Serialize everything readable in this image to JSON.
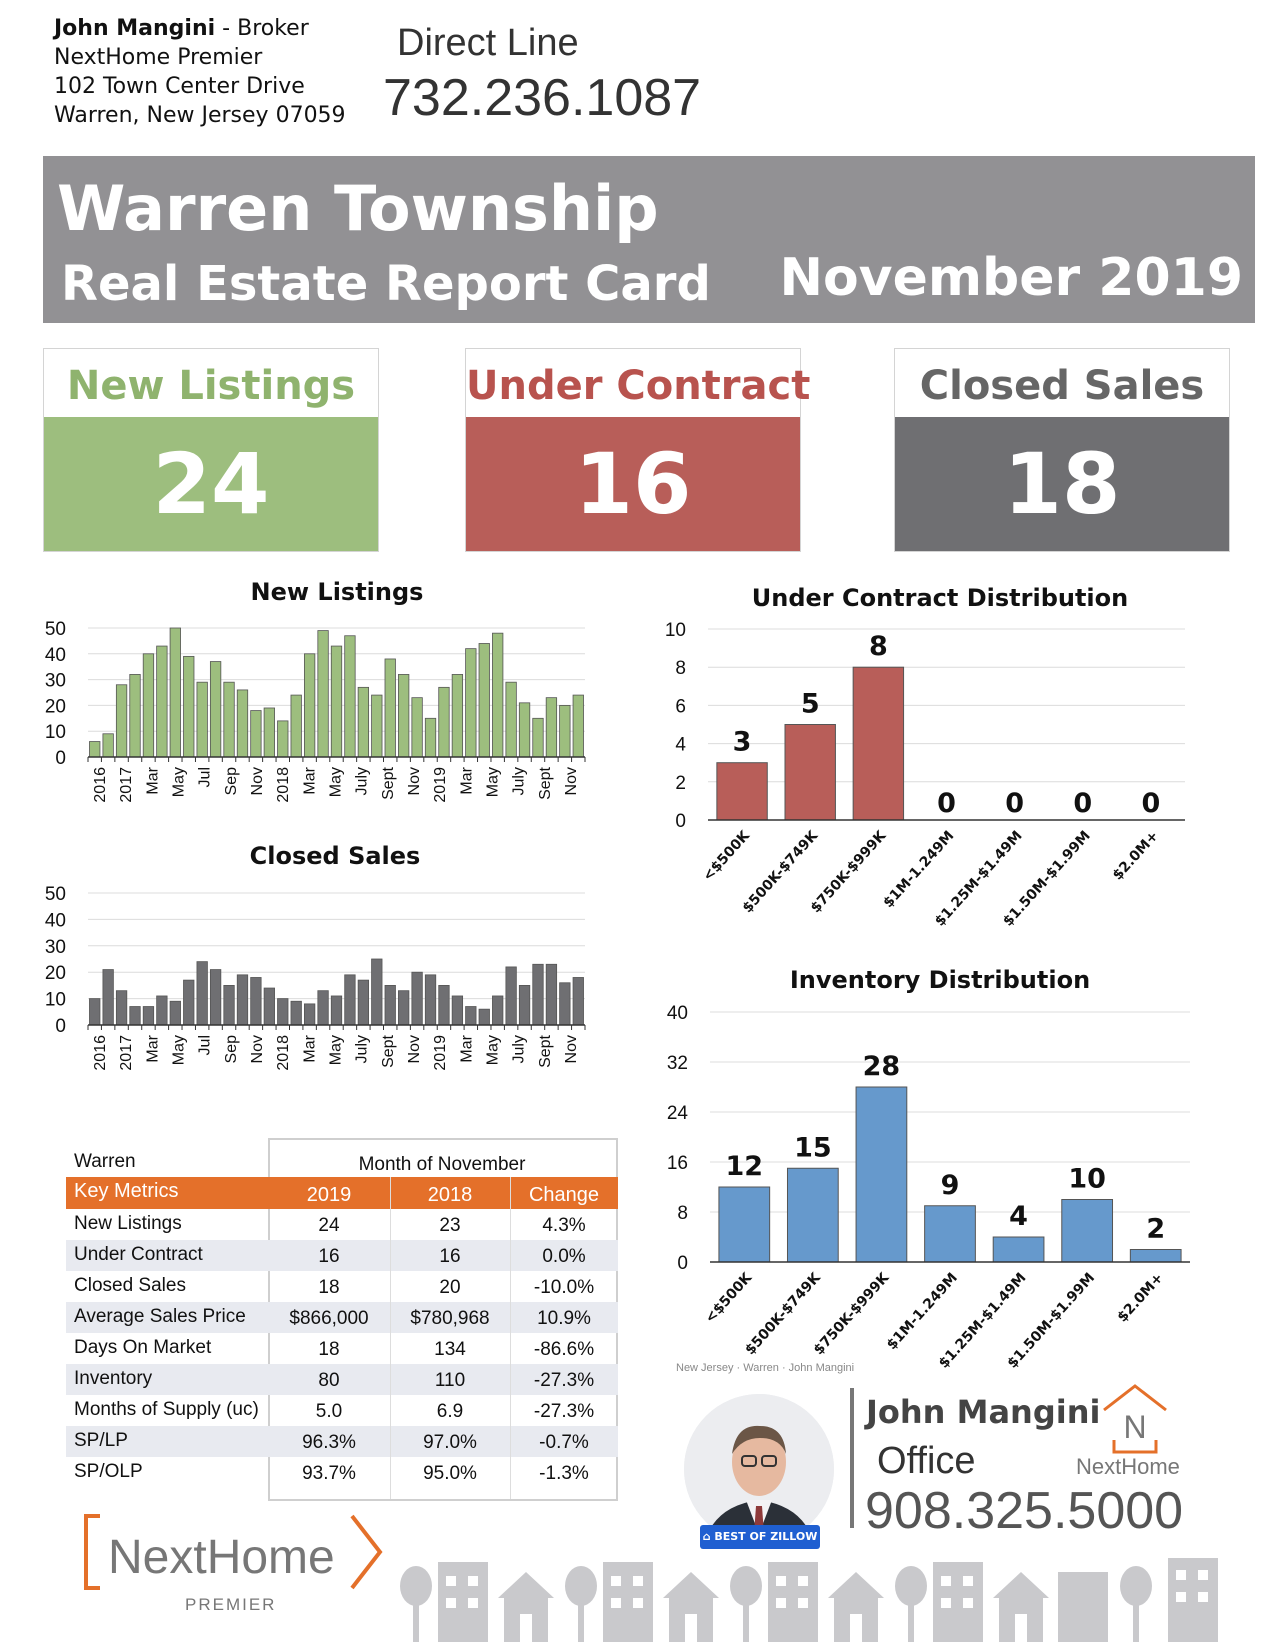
{
  "header": {
    "agent_name": "John Mangini",
    "agent_role": " - Broker",
    "office": "NextHome Premier",
    "address1": "102 Town Center Drive",
    "address2": "Warren, New Jersey 07059",
    "direct_label": "Direct Line",
    "direct_phone": "732.236.1087"
  },
  "banner": {
    "title": "Warren Township",
    "subtitle": "Real Estate Report Card",
    "period": "November 2019"
  },
  "kpis": [
    {
      "label": "New Listings",
      "value": "24",
      "label_color": "#8fb36e",
      "box_color": "#9dbe7e"
    },
    {
      "label": "Under Contract",
      "value": "16",
      "label_color": "#b8534e",
      "box_color": "#b85e59"
    },
    {
      "label": "Closed Sales",
      "value": "18",
      "label_color": "#666666",
      "box_color": "#6f6f72"
    }
  ],
  "chart_data": [
    {
      "type": "bar",
      "title": "New Listings",
      "color": "#9dbe7e",
      "ylim": [
        0,
        50
      ],
      "yticks": [
        0,
        10,
        20,
        30,
        40,
        50
      ],
      "x_labels": [
        "2016",
        "2017",
        "Mar",
        "May",
        "Jul",
        "Sep",
        "Nov",
        "2018",
        "Mar",
        "May",
        "July",
        "Sept",
        "Nov",
        "2019",
        "Mar",
        "May",
        "July",
        "Sept",
        "Nov"
      ],
      "values": [
        6,
        9,
        28,
        32,
        40,
        43,
        50,
        39,
        29,
        37,
        29,
        26,
        18,
        19,
        14,
        24,
        40,
        49,
        43,
        47,
        27,
        24,
        38,
        32,
        23,
        15,
        27,
        32,
        42,
        44,
        48,
        29,
        21,
        15,
        23,
        20,
        24
      ]
    },
    {
      "type": "bar",
      "title": "Closed Sales",
      "color": "#6f6f72",
      "ylim": [
        0,
        50
      ],
      "yticks": [
        0,
        10,
        20,
        30,
        40,
        50
      ],
      "x_labels": [
        "2016",
        "2017",
        "Mar",
        "May",
        "Jul",
        "Sep",
        "Nov",
        "2018",
        "Mar",
        "May",
        "July",
        "Sept",
        "Nov",
        "2019",
        "Mar",
        "May",
        "July",
        "Sept",
        "Nov"
      ],
      "values": [
        10,
        21,
        13,
        7,
        7,
        11,
        9,
        17,
        24,
        21,
        15,
        19,
        18,
        14,
        10,
        9,
        8,
        13,
        11,
        19,
        17,
        25,
        15,
        13,
        20,
        19,
        15,
        11,
        7,
        6,
        11,
        22,
        15,
        23,
        23,
        16,
        18
      ]
    },
    {
      "type": "bar",
      "title": "Under Contract Distribution",
      "color": "#b85e59",
      "ylim": [
        0,
        10
      ],
      "yticks": [
        0,
        2,
        4,
        6,
        8,
        10
      ],
      "categories": [
        "<$500K",
        "$500K-$749K",
        "$750K-$999K",
        "$1M-1.249M",
        "$1.25M-$1.49M",
        "$1.50M-$1.99M",
        "$2.0M+"
      ],
      "values": [
        3,
        5,
        8,
        0,
        0,
        0,
        0
      ]
    },
    {
      "type": "bar",
      "title": "Inventory Distribution",
      "color": "#6699cc",
      "ylim": [
        0,
        40
      ],
      "yticks": [
        0,
        8,
        16,
        24,
        32,
        40
      ],
      "categories": [
        "<$500K",
        "$500K-$749K",
        "$750K-$999K",
        "$1M-1.249M",
        "$1.25M-$1.49M",
        "$1.50M-$1.99M",
        "$2.0M+"
      ],
      "values": [
        12,
        15,
        28,
        9,
        4,
        10,
        2
      ]
    }
  ],
  "metrics_table": {
    "area": "Warren",
    "period": "Month of November",
    "columns": [
      "Key Metrics",
      "2019",
      "2018",
      "Change"
    ],
    "rows": [
      [
        "New Listings",
        "24",
        "23",
        "4.3%"
      ],
      [
        "Under Contract",
        "16",
        "16",
        "0.0%"
      ],
      [
        "Closed Sales",
        "18",
        "20",
        "-10.0%"
      ],
      [
        "Average Sales Price",
        "$866,000",
        "$780,968",
        "10.9%"
      ],
      [
        "Days On Market",
        "18",
        "134",
        "-86.6%"
      ],
      [
        "Inventory",
        "80",
        "110",
        "-27.3%"
      ],
      [
        "Months of Supply (uc)",
        "5.0",
        "6.9",
        "-27.3%"
      ],
      [
        "SP/LP",
        "96.3%",
        "97.0%",
        "-0.7%"
      ],
      [
        "SP/OLP",
        "93.7%",
        "95.0%",
        "-1.3%"
      ]
    ]
  },
  "footer": {
    "small_caption": "New Jersey · Warren · John Mangini",
    "badge": "BEST OF ZILLOW",
    "agent_name": "John Mangini",
    "office_label": "Office",
    "office_phone": "908.325.5000",
    "brand": "NextHome",
    "brand_sub": "PREMIER",
    "logo_letter": "N",
    "accent": "#e4702a"
  }
}
